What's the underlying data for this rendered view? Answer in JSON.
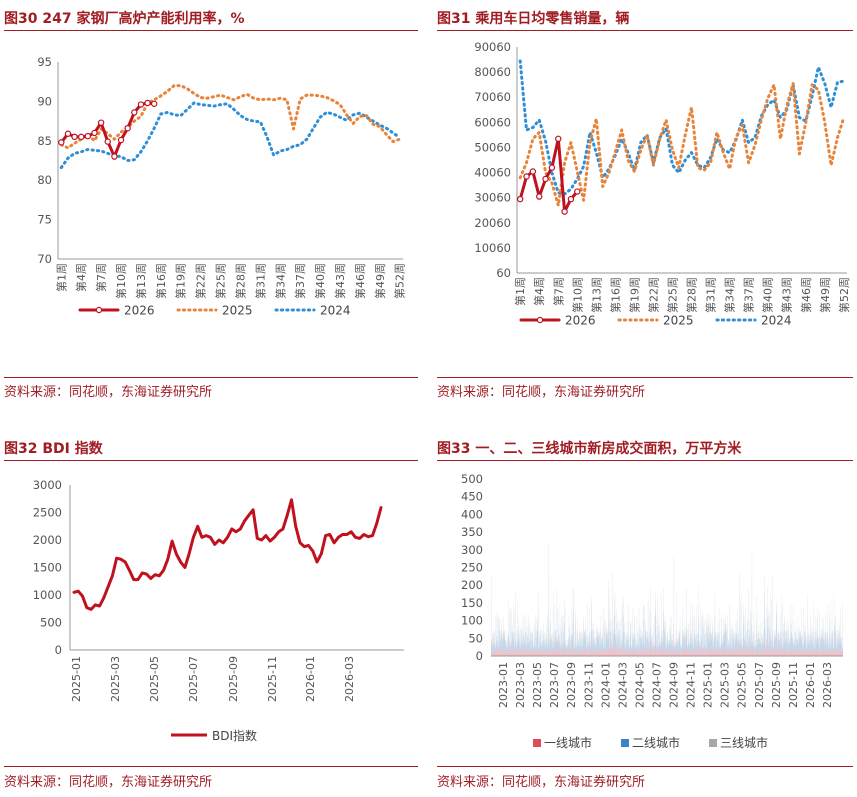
{
  "charts": [
    {
      "title": "图30  247 家钢厂高炉产能利用率，%",
      "source": "资料来源：同花顺，东海证券研究所",
      "chart_data": {
        "type": "line",
        "yticks": [
          "95",
          "90",
          "85",
          "80",
          "75",
          "70"
        ],
        "ylim": [
          70,
          95
        ],
        "weeks": 52,
        "xtick_labels": [
          "第1周",
          "第4周",
          "第7周",
          "第10周",
          "第13周",
          "第16周",
          "第19周",
          "第22周",
          "第25周",
          "第28周",
          "第31周",
          "第34周",
          "第37周",
          "第40周",
          "第43周",
          "第46周",
          "第49周",
          "第52周"
        ],
        "series": [
          {
            "name": "2026",
            "style": "solid-marker",
            "color": "#c0111f",
            "values": [
              84.8,
              85.9,
              85.5,
              85.5,
              85.6,
              86.0,
              87.3,
              84.9,
              83.0,
              85.1,
              86.6,
              88.6,
              89.6,
              89.8,
              89.7
            ]
          },
          {
            "name": "2025",
            "style": "dotted",
            "color": "#e8833a",
            "values": [
              84.5,
              84.1,
              84.7,
              85.2,
              85.8,
              85.0,
              86.5,
              85.9,
              85.2,
              86.1,
              86.7,
              87.5,
              88.1,
              89.8,
              90.2,
              90.7,
              91.3,
              92.0,
              92.0,
              91.6,
              91.0,
              90.5,
              90.4,
              90.6,
              90.8,
              90.5,
              90.2,
              90.6,
              90.9,
              90.4,
              90.2,
              90.3,
              90.2,
              90.4,
              90.2,
              86.5,
              90.3,
              90.8,
              90.8,
              90.7,
              90.5,
              90.1,
              89.6,
              88.3,
              87.2,
              88.1,
              88.2,
              87.1,
              86.8,
              85.8,
              84.9,
              85.2
            ]
          },
          {
            "name": "2024",
            "style": "dotted",
            "color": "#2e8ed6",
            "values": [
              81.6,
              82.8,
              83.4,
              83.6,
              83.9,
              83.8,
              83.7,
              83.4,
              83.1,
              83.0,
              82.5,
              82.6,
              83.6,
              85.0,
              86.6,
              88.4,
              88.6,
              88.3,
              88.2,
              89.0,
              89.8,
              89.6,
              89.5,
              89.4,
              89.6,
              89.7,
              89.0,
              88.2,
              87.7,
              87.5,
              87.4,
              85.5,
              83.2,
              83.7,
              83.9,
              84.3,
              84.5,
              85.2,
              86.6,
              88.0,
              88.6,
              88.4,
              88.0,
              87.6,
              88.3,
              88.5,
              88.0,
              87.5,
              87.0,
              86.6,
              86.0,
              85.4
            ]
          }
        ]
      }
    },
    {
      "title": "图31  乘用车日均零售销量，辆",
      "source": "资料来源：同花顺，东海证券研究所",
      "chart_data": {
        "type": "line",
        "yticks": [
          "90060",
          "80060",
          "70060",
          "60060",
          "50060",
          "40060",
          "30060",
          "20060",
          "10060",
          "60"
        ],
        "ylim": [
          60,
          90060
        ],
        "weeks": 52,
        "xtick_labels": [
          "第1周",
          "第4周",
          "第7周",
          "第10周",
          "第13周",
          "第16周",
          "第19周",
          "第22周",
          "第25周",
          "第28周",
          "第31周",
          "第34周",
          "第37周",
          "第40周",
          "第43周",
          "第46周",
          "第49周",
          "第52周"
        ],
        "series": [
          {
            "name": "2026",
            "style": "solid-marker",
            "color": "#c0111f",
            "values": [
              29500,
              38500,
              40500,
              30500,
              37500,
              42000,
              53500,
              24500,
              29500,
              32500
            ]
          },
          {
            "name": "2025",
            "style": "dotted",
            "color": "#e8833a",
            "values": [
              38000,
              44000,
              53500,
              56000,
              40000,
              36000,
              27000,
              44000,
              52000,
              40500,
              29000,
              52000,
              61500,
              34500,
              40000,
              48500,
              57000,
              45000,
              40500,
              49000,
              55000,
              43000,
              53500,
              61000,
              49000,
              42000,
              55000,
              66000,
              42000,
              41000,
              44000,
              56000,
              48000,
              41500,
              54000,
              59000,
              44000,
              51000,
              61000,
              69500,
              75000,
              53500,
              66500,
              75500,
              47500,
              60000,
              75000,
              73000,
              60000,
              43000,
              54000,
              62000
            ]
          },
          {
            "name": "2024",
            "style": "dotted",
            "color": "#2e8ed6",
            "values": [
              84500,
              57000,
              58000,
              61000,
              52500,
              40000,
              32000,
              31500,
              33500,
              37500,
              42500,
              56000,
              48000,
              38000,
              41500,
              47000,
              53500,
              48000,
              41000,
              52000,
              55000,
              44000,
              54000,
              57500,
              43000,
              40000,
              45000,
              48000,
              43000,
              42000,
              46000,
              53500,
              49000,
              48000,
              53000,
              61000,
              52000,
              54000,
              62500,
              67000,
              69000,
              62000,
              65000,
              75000,
              62000,
              60500,
              70500,
              82000,
              75500,
              66000,
              76000,
              76500
            ]
          }
        ]
      }
    },
    {
      "title": "图32  BDI 指数",
      "source": "资料来源：同花顺，东海证券研究所",
      "chart_data": {
        "type": "line",
        "yticks": [
          "3000",
          "2500",
          "2000",
          "1500",
          "1000",
          "500",
          "0"
        ],
        "ylim": [
          0,
          3000
        ],
        "xtick_labels": [
          "2025-01",
          "2025-03",
          "2025-05",
          "2025-07",
          "2025-09",
          "2025-11",
          "2026-01",
          "2026-03"
        ],
        "series": [
          {
            "name": "BDI指数",
            "color": "#c0111f",
            "values": [
              1050,
              1070,
              980,
              770,
              740,
              820,
              800,
              950,
              1150,
              1350,
              1670,
              1650,
              1600,
              1450,
              1280,
              1280,
              1400,
              1380,
              1300,
              1370,
              1350,
              1450,
              1650,
              1980,
              1750,
              1600,
              1500,
              1750,
              2050,
              2250,
              2050,
              2080,
              2050,
              1920,
              2000,
              1950,
              2050,
              2200,
              2150,
              2200,
              2350,
              2450,
              2550,
              2030,
              2000,
              2080,
              1980,
              2050,
              2150,
              2200,
              2450,
              2730,
              2250,
              1950,
              1880,
              1900,
              1800,
              1600,
              1750,
              2080,
              2100,
              1950,
              2050,
              2100,
              2100,
              2150,
              2050,
              2030,
              2100,
              2060,
              2080,
              2300,
              2590
            ]
          }
        ]
      }
    },
    {
      "title": "图33  一、二、三线城市新房成交面积，万平方米",
      "source": "资料来源：同花顺，东海证券研究所",
      "chart_data": {
        "type": "bar",
        "stacked": true,
        "yticks": [
          "500",
          "450",
          "400",
          "350",
          "300",
          "250",
          "200",
          "150",
          "100",
          "50",
          "0"
        ],
        "ylim": [
          0,
          500
        ],
        "xtick_labels": [
          "2023-01",
          "2023-03",
          "2023-05",
          "2023-07",
          "2023-09",
          "2023-11",
          "2024-01",
          "2024-03",
          "2024-05",
          "2024-07",
          "2024-09",
          "2024-11",
          "2025-01",
          "2025-03",
          "2025-05",
          "2025-07",
          "2025-09",
          "2025-11",
          "2026-01",
          "2026-03"
        ],
        "daily_bar_count": 1200,
        "series": [
          {
            "name": "一线城市",
            "color": "#e04a5a"
          },
          {
            "name": "二线城市",
            "color": "#3a83c4"
          },
          {
            "name": "三线城市",
            "color": "#a7a7a7"
          }
        ]
      }
    }
  ]
}
